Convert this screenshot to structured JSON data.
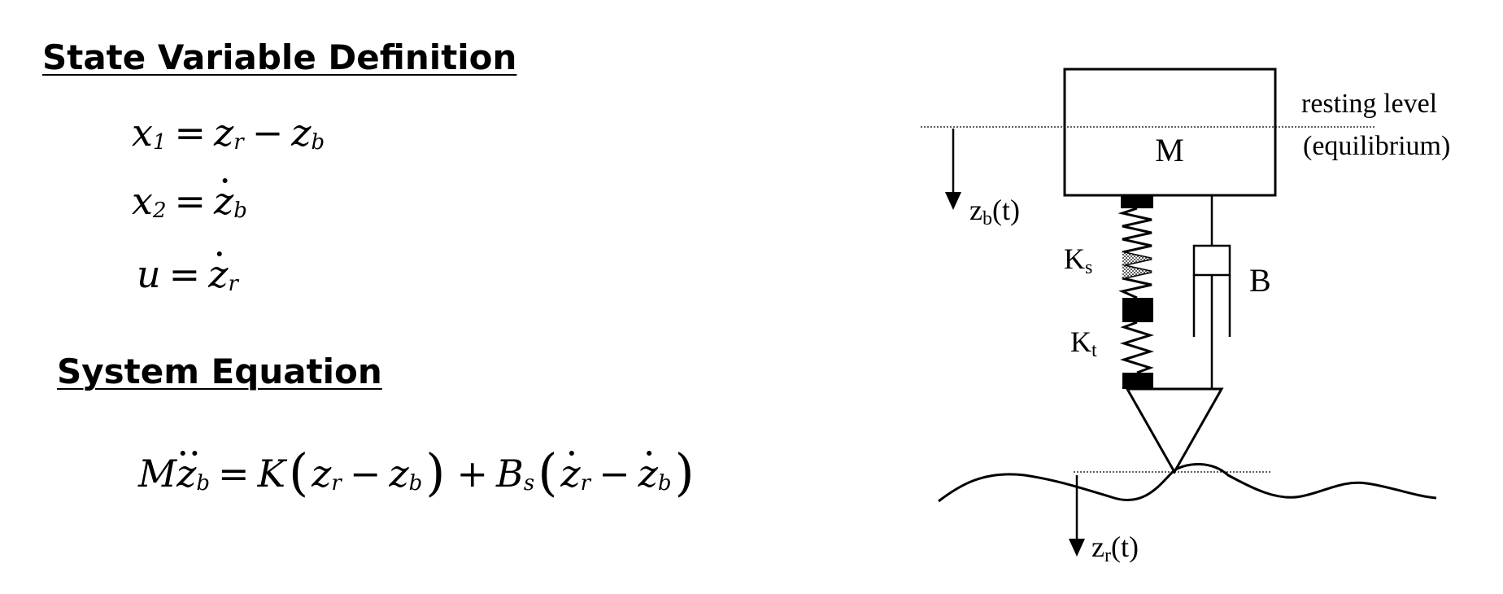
{
  "sections": {
    "state_heading": "State Variable Definition",
    "system_heading": "System Equation"
  },
  "equations": {
    "x1": {
      "lhs": "x",
      "lhs_sub": "1",
      "eq": "=",
      "a": "z",
      "a_sub": "r",
      "minus": "−",
      "b": "z",
      "b_sub": "b"
    },
    "x2": {
      "lhs": "x",
      "lhs_sub": "2",
      "eq": "=",
      "a": "z",
      "a_sub": "b"
    },
    "u": {
      "lhs": "u",
      "eq": "=",
      "a": "z",
      "a_sub": "r"
    },
    "system": {
      "M": "M",
      "z": "z",
      "b_sub": "b",
      "eq": "=",
      "K": "K",
      "lp": "(",
      "rp": ")",
      "zr": "z",
      "r_sub": "r",
      "minus": "−",
      "zb": "z",
      "plus": "+",
      "B": "B",
      "s_sub": "s"
    }
  },
  "diagram": {
    "mass_label": "M",
    "resting_line1": "resting level",
    "resting_line2": "(equilibrium)",
    "zb_label": "z",
    "zb_sub": "b",
    "zb_suffix": "(t)",
    "ks_label": "K",
    "ks_sub": "s",
    "kt_label": "K",
    "kt_sub": "t",
    "b_label": "B",
    "zr_label": "z",
    "zr_sub": "r",
    "zr_suffix": "(t)"
  }
}
